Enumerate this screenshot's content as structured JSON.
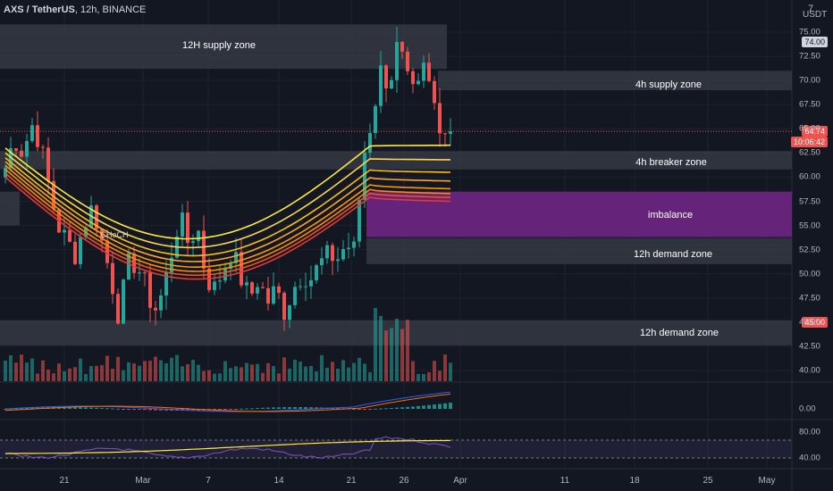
{
  "header": {
    "symbol": "AXS / TetherUS",
    "interval": "12h",
    "exchange": "BINANCE",
    "currency": "USDT",
    "menu_glyph": "7"
  },
  "price_tags": {
    "last": "64.74",
    "countdown": "10:06:42",
    "top_tag": "74.00",
    "level_tag": "45.00"
  },
  "zones": [
    {
      "label": "12H supply zone",
      "from": 71.2,
      "to": 75.8,
      "kind": "supply"
    },
    {
      "label": "4h supply zone",
      "from": 69.0,
      "to": 71.0,
      "kind": "supply"
    },
    {
      "label": "4h breaker zone",
      "from": 60.8,
      "to": 62.7,
      "kind": "breaker"
    },
    {
      "label": "imbalance",
      "from": 53.8,
      "to": 58.5,
      "kind": "imbalance"
    },
    {
      "label": "12h demand zone",
      "from": 51.0,
      "to": 53.7,
      "kind": "demand"
    },
    {
      "label": "12h demand zone",
      "from": 42.6,
      "to": 45.2,
      "kind": "demand"
    }
  ],
  "annotation": "CHoCH",
  "chart_data": {
    "type": "candlestick",
    "price_axis": {
      "min": 40.0,
      "max": 75.0,
      "step": 2.5,
      "ticks": [
        "75.00",
        "72.50",
        "70.00",
        "67.50",
        "65.00",
        "62.50",
        "60.00",
        "57.50",
        "55.00",
        "52.50",
        "50.00",
        "47.50",
        "45.00",
        "42.50",
        "40.00"
      ]
    },
    "date_axis": [
      "21",
      "Mar",
      "7",
      "14",
      "21",
      "26",
      "Apr",
      "11",
      "18",
      "25",
      "May"
    ],
    "close_anchors": [
      61.0,
      64.0,
      62.5,
      65.5,
      63.5,
      59.0,
      55.0,
      53.5,
      52.0,
      55.0,
      57.0,
      53.5,
      50.0,
      45.5,
      51.0,
      51.0,
      49.0,
      46.0,
      48.0,
      52.0,
      56.0,
      53.0,
      55.0,
      49.5,
      48.5,
      50.5,
      52.5,
      49.5,
      47.5,
      49.5,
      47.0,
      48.5,
      46.0,
      48.5,
      50.0,
      49.5,
      51.0,
      52.0,
      51.5,
      53.0,
      52.5,
      62.0,
      66.0,
      71.0,
      69.5,
      74.0,
      70.0,
      68.0,
      71.5,
      68.0,
      65.0,
      64.74
    ],
    "ema_ribbon_start": [
      63.0,
      62.5,
      62.0,
      61.6,
      61.2,
      60.8,
      60.4,
      60.0
    ],
    "ema_ribbon_end": [
      63.3,
      61.8,
      60.5,
      59.6,
      58.8,
      58.3,
      57.9,
      57.5
    ],
    "volume": "relative histogram, spike on breakout candles",
    "macd_pane": {
      "tick": "0.00"
    },
    "rsi_pane": {
      "ticks": [
        "80.00",
        "40.00"
      ]
    }
  },
  "colors": {
    "background": "#131722",
    "up": "#26a69a",
    "down": "#ef5350",
    "zone_fill": "#3a3d48",
    "imbalance": "#6a2480",
    "ribbon": [
      "#ffeb3b",
      "#ffd54f",
      "#ffc107",
      "#ffa726",
      "#ff9800",
      "#fb8c00",
      "#f4511e",
      "#e53935"
    ]
  }
}
